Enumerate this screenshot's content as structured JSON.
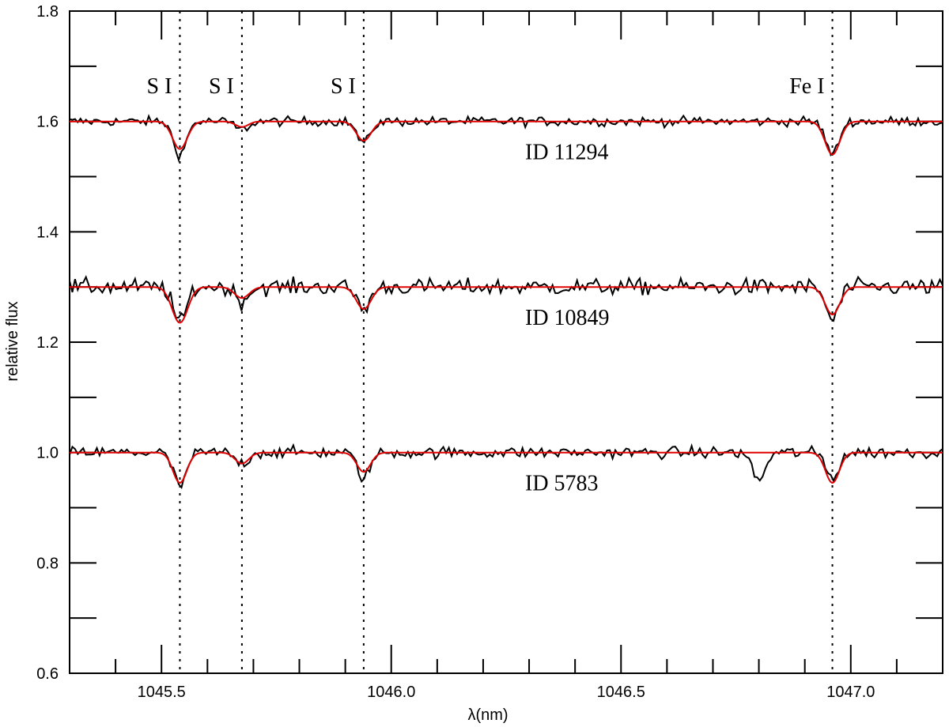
{
  "chart_data": {
    "type": "line",
    "title": "",
    "xlabel": "λ(nm)",
    "ylabel": "relative flux",
    "xlim": [
      1045.3,
      1047.2
    ],
    "ylim": [
      0.6,
      1.8
    ],
    "x_ticks": [
      1045.5,
      1046.0,
      1046.5,
      1047.0
    ],
    "x_tick_labels": [
      "1045.5",
      "1046.0",
      "1046.5",
      "1047.0"
    ],
    "y_ticks": [
      0.6,
      0.8,
      1.0,
      1.2,
      1.4,
      1.6,
      1.8
    ],
    "y_tick_labels": [
      "0.6",
      "0.8",
      "1.0",
      "1.2",
      "1.4",
      "1.6",
      "1.8"
    ],
    "grid": false,
    "line_markers": [
      {
        "label": "S I",
        "x": 1045.54
      },
      {
        "label": "S I",
        "x": 1045.675
      },
      {
        "label": "S I",
        "x": 1045.94
      },
      {
        "label": "Fe I",
        "x": 1046.96
      }
    ],
    "series": [
      {
        "name": "ID 11294",
        "continuum": 1.6,
        "model_dips": [
          {
            "x": 1045.54,
            "depth": 0.05,
            "width": 0.016
          },
          {
            "x": 1045.675,
            "depth": 0.01,
            "width": 0.014
          },
          {
            "x": 1045.94,
            "depth": 0.035,
            "width": 0.016
          },
          {
            "x": 1046.96,
            "depth": 0.06,
            "width": 0.016
          }
        ],
        "observed_dips": [
          {
            "x": 1045.54,
            "depth": 0.06
          },
          {
            "x": 1045.675,
            "depth": 0.015
          },
          {
            "x": 1045.94,
            "depth": 0.04
          },
          {
            "x": 1046.96,
            "depth": 0.06
          }
        ],
        "noise": 0.008
      },
      {
        "name": "ID 10849",
        "continuum": 1.3,
        "model_dips": [
          {
            "x": 1045.54,
            "depth": 0.065,
            "width": 0.017
          },
          {
            "x": 1045.675,
            "depth": 0.02,
            "width": 0.016
          },
          {
            "x": 1045.94,
            "depth": 0.04,
            "width": 0.016
          },
          {
            "x": 1046.96,
            "depth": 0.05,
            "width": 0.016
          }
        ],
        "observed_dips": [
          {
            "x": 1045.54,
            "depth": 0.065
          },
          {
            "x": 1045.675,
            "depth": 0.025
          },
          {
            "x": 1045.94,
            "depth": 0.04
          },
          {
            "x": 1046.96,
            "depth": 0.06
          }
        ],
        "noise": 0.014
      },
      {
        "name": "ID 5783",
        "continuum": 1.0,
        "model_dips": [
          {
            "x": 1045.54,
            "depth": 0.055,
            "width": 0.015
          },
          {
            "x": 1045.675,
            "depth": 0.02,
            "width": 0.015
          },
          {
            "x": 1045.94,
            "depth": 0.035,
            "width": 0.015
          },
          {
            "x": 1046.96,
            "depth": 0.055,
            "width": 0.015
          }
        ],
        "observed_dips": [
          {
            "x": 1045.54,
            "depth": 0.06
          },
          {
            "x": 1045.675,
            "depth": 0.02
          },
          {
            "x": 1045.94,
            "depth": 0.045
          },
          {
            "x": 1046.8,
            "depth": 0.05
          },
          {
            "x": 1046.96,
            "depth": 0.045
          }
        ],
        "noise": 0.01
      }
    ],
    "colors": {
      "observed": "#000000",
      "model": "#e00000",
      "axis": "#000000"
    }
  }
}
